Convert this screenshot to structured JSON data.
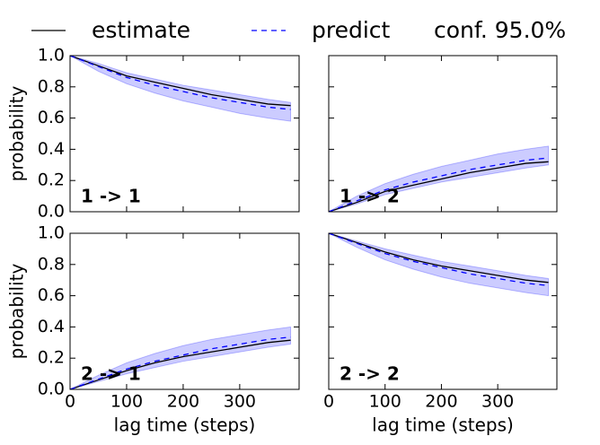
{
  "chart_data": [
    {
      "type": "line",
      "label": "1 -> 1",
      "ylabel": "probability",
      "x": [
        0,
        50,
        100,
        150,
        200,
        250,
        300,
        350,
        390
      ],
      "series": [
        {
          "name": "estimate",
          "color": "#000000",
          "style": "solid",
          "values": [
            1.0,
            0.935,
            0.87,
            0.83,
            0.79,
            0.75,
            0.72,
            0.69,
            0.68
          ]
        },
        {
          "name": "predict",
          "color": "#0000ff",
          "style": "dashed",
          "values": [
            1.0,
            0.93,
            0.86,
            0.81,
            0.77,
            0.73,
            0.7,
            0.67,
            0.655
          ]
        },
        {
          "name": "conf. 95.0%",
          "color": "#0000ff",
          "style": "band",
          "lower": [
            1.0,
            0.9,
            0.82,
            0.76,
            0.71,
            0.67,
            0.63,
            0.6,
            0.58
          ],
          "upper": [
            1.0,
            0.95,
            0.89,
            0.85,
            0.81,
            0.78,
            0.75,
            0.72,
            0.7
          ]
        }
      ],
      "xlim": [
        0,
        405
      ],
      "ylim": [
        0,
        1
      ],
      "yticks": [
        {
          "value": 0,
          "label": "0.0"
        },
        {
          "value": 0.2,
          "label": "0.2"
        },
        {
          "value": 0.4,
          "label": "0.4"
        },
        {
          "value": 0.6,
          "label": "0.6"
        },
        {
          "value": 0.8,
          "label": "0.8"
        },
        {
          "value": 1,
          "label": "1.0"
        }
      ]
    },
    {
      "type": "line",
      "label": "1 -> 2",
      "x": [
        0,
        50,
        100,
        150,
        200,
        250,
        300,
        350,
        390
      ],
      "series": [
        {
          "color": "#000000",
          "style": "solid",
          "values": [
            0,
            0.06,
            0.13,
            0.17,
            0.21,
            0.25,
            0.28,
            0.31,
            0.32
          ]
        },
        {
          "color": "#0000ff",
          "style": "dashed",
          "values": [
            0,
            0.07,
            0.14,
            0.19,
            0.23,
            0.27,
            0.3,
            0.33,
            0.345
          ]
        },
        {
          "color": "#0000ff",
          "style": "band",
          "lower": [
            0,
            0.05,
            0.11,
            0.15,
            0.19,
            0.22,
            0.25,
            0.28,
            0.3
          ],
          "upper": [
            0,
            0.1,
            0.18,
            0.24,
            0.29,
            0.33,
            0.37,
            0.4,
            0.42
          ]
        }
      ],
      "xlim": [
        0,
        405
      ],
      "ylim": [
        0,
        1
      ]
    },
    {
      "type": "line",
      "label": "2 -> 1",
      "ylabel": "probability",
      "xlabel": "lag time (steps)",
      "x": [
        0,
        50,
        100,
        150,
        200,
        250,
        300,
        350,
        390
      ],
      "series": [
        {
          "color": "#000000",
          "style": "solid",
          "values": [
            0,
            0.06,
            0.12,
            0.17,
            0.21,
            0.24,
            0.27,
            0.3,
            0.315
          ]
        },
        {
          "color": "#0000ff",
          "style": "dashed",
          "values": [
            0,
            0.065,
            0.13,
            0.18,
            0.22,
            0.26,
            0.29,
            0.32,
            0.335
          ]
        },
        {
          "color": "#0000ff",
          "style": "band",
          "lower": [
            0,
            0.05,
            0.1,
            0.14,
            0.18,
            0.21,
            0.24,
            0.27,
            0.29
          ],
          "upper": [
            0,
            0.09,
            0.17,
            0.23,
            0.28,
            0.32,
            0.35,
            0.38,
            0.4
          ]
        }
      ],
      "xlim": [
        0,
        405
      ],
      "ylim": [
        0,
        1
      ],
      "xticks": [
        0,
        100,
        200,
        300
      ],
      "yticks": [
        {
          "value": 0,
          "label": "0.0"
        },
        {
          "value": 0.2,
          "label": "0.2"
        },
        {
          "value": 0.4,
          "label": "0.4"
        },
        {
          "value": 0.6,
          "label": "0.6"
        },
        {
          "value": 0.8,
          "label": "0.8"
        },
        {
          "value": 1,
          "label": "1.0"
        }
      ]
    },
    {
      "type": "line",
      "label": "2 -> 2",
      "xlabel": "lag time (steps)",
      "x": [
        0,
        50,
        100,
        150,
        200,
        250,
        300,
        350,
        390
      ],
      "series": [
        {
          "color": "#000000",
          "style": "solid",
          "values": [
            1.0,
            0.94,
            0.88,
            0.83,
            0.79,
            0.76,
            0.73,
            0.7,
            0.685
          ]
        },
        {
          "color": "#0000ff",
          "style": "dashed",
          "values": [
            1.0,
            0.935,
            0.87,
            0.82,
            0.78,
            0.74,
            0.71,
            0.68,
            0.665
          ]
        },
        {
          "color": "#0000ff",
          "style": "band",
          "lower": [
            1.0,
            0.91,
            0.83,
            0.77,
            0.72,
            0.68,
            0.65,
            0.62,
            0.6
          ],
          "upper": [
            1.0,
            0.95,
            0.9,
            0.86,
            0.82,
            0.79,
            0.76,
            0.73,
            0.71
          ]
        }
      ],
      "xlim": [
        0,
        405
      ],
      "ylim": [
        0,
        1
      ],
      "xticks": [
        0,
        100,
        200,
        300
      ]
    }
  ]
}
